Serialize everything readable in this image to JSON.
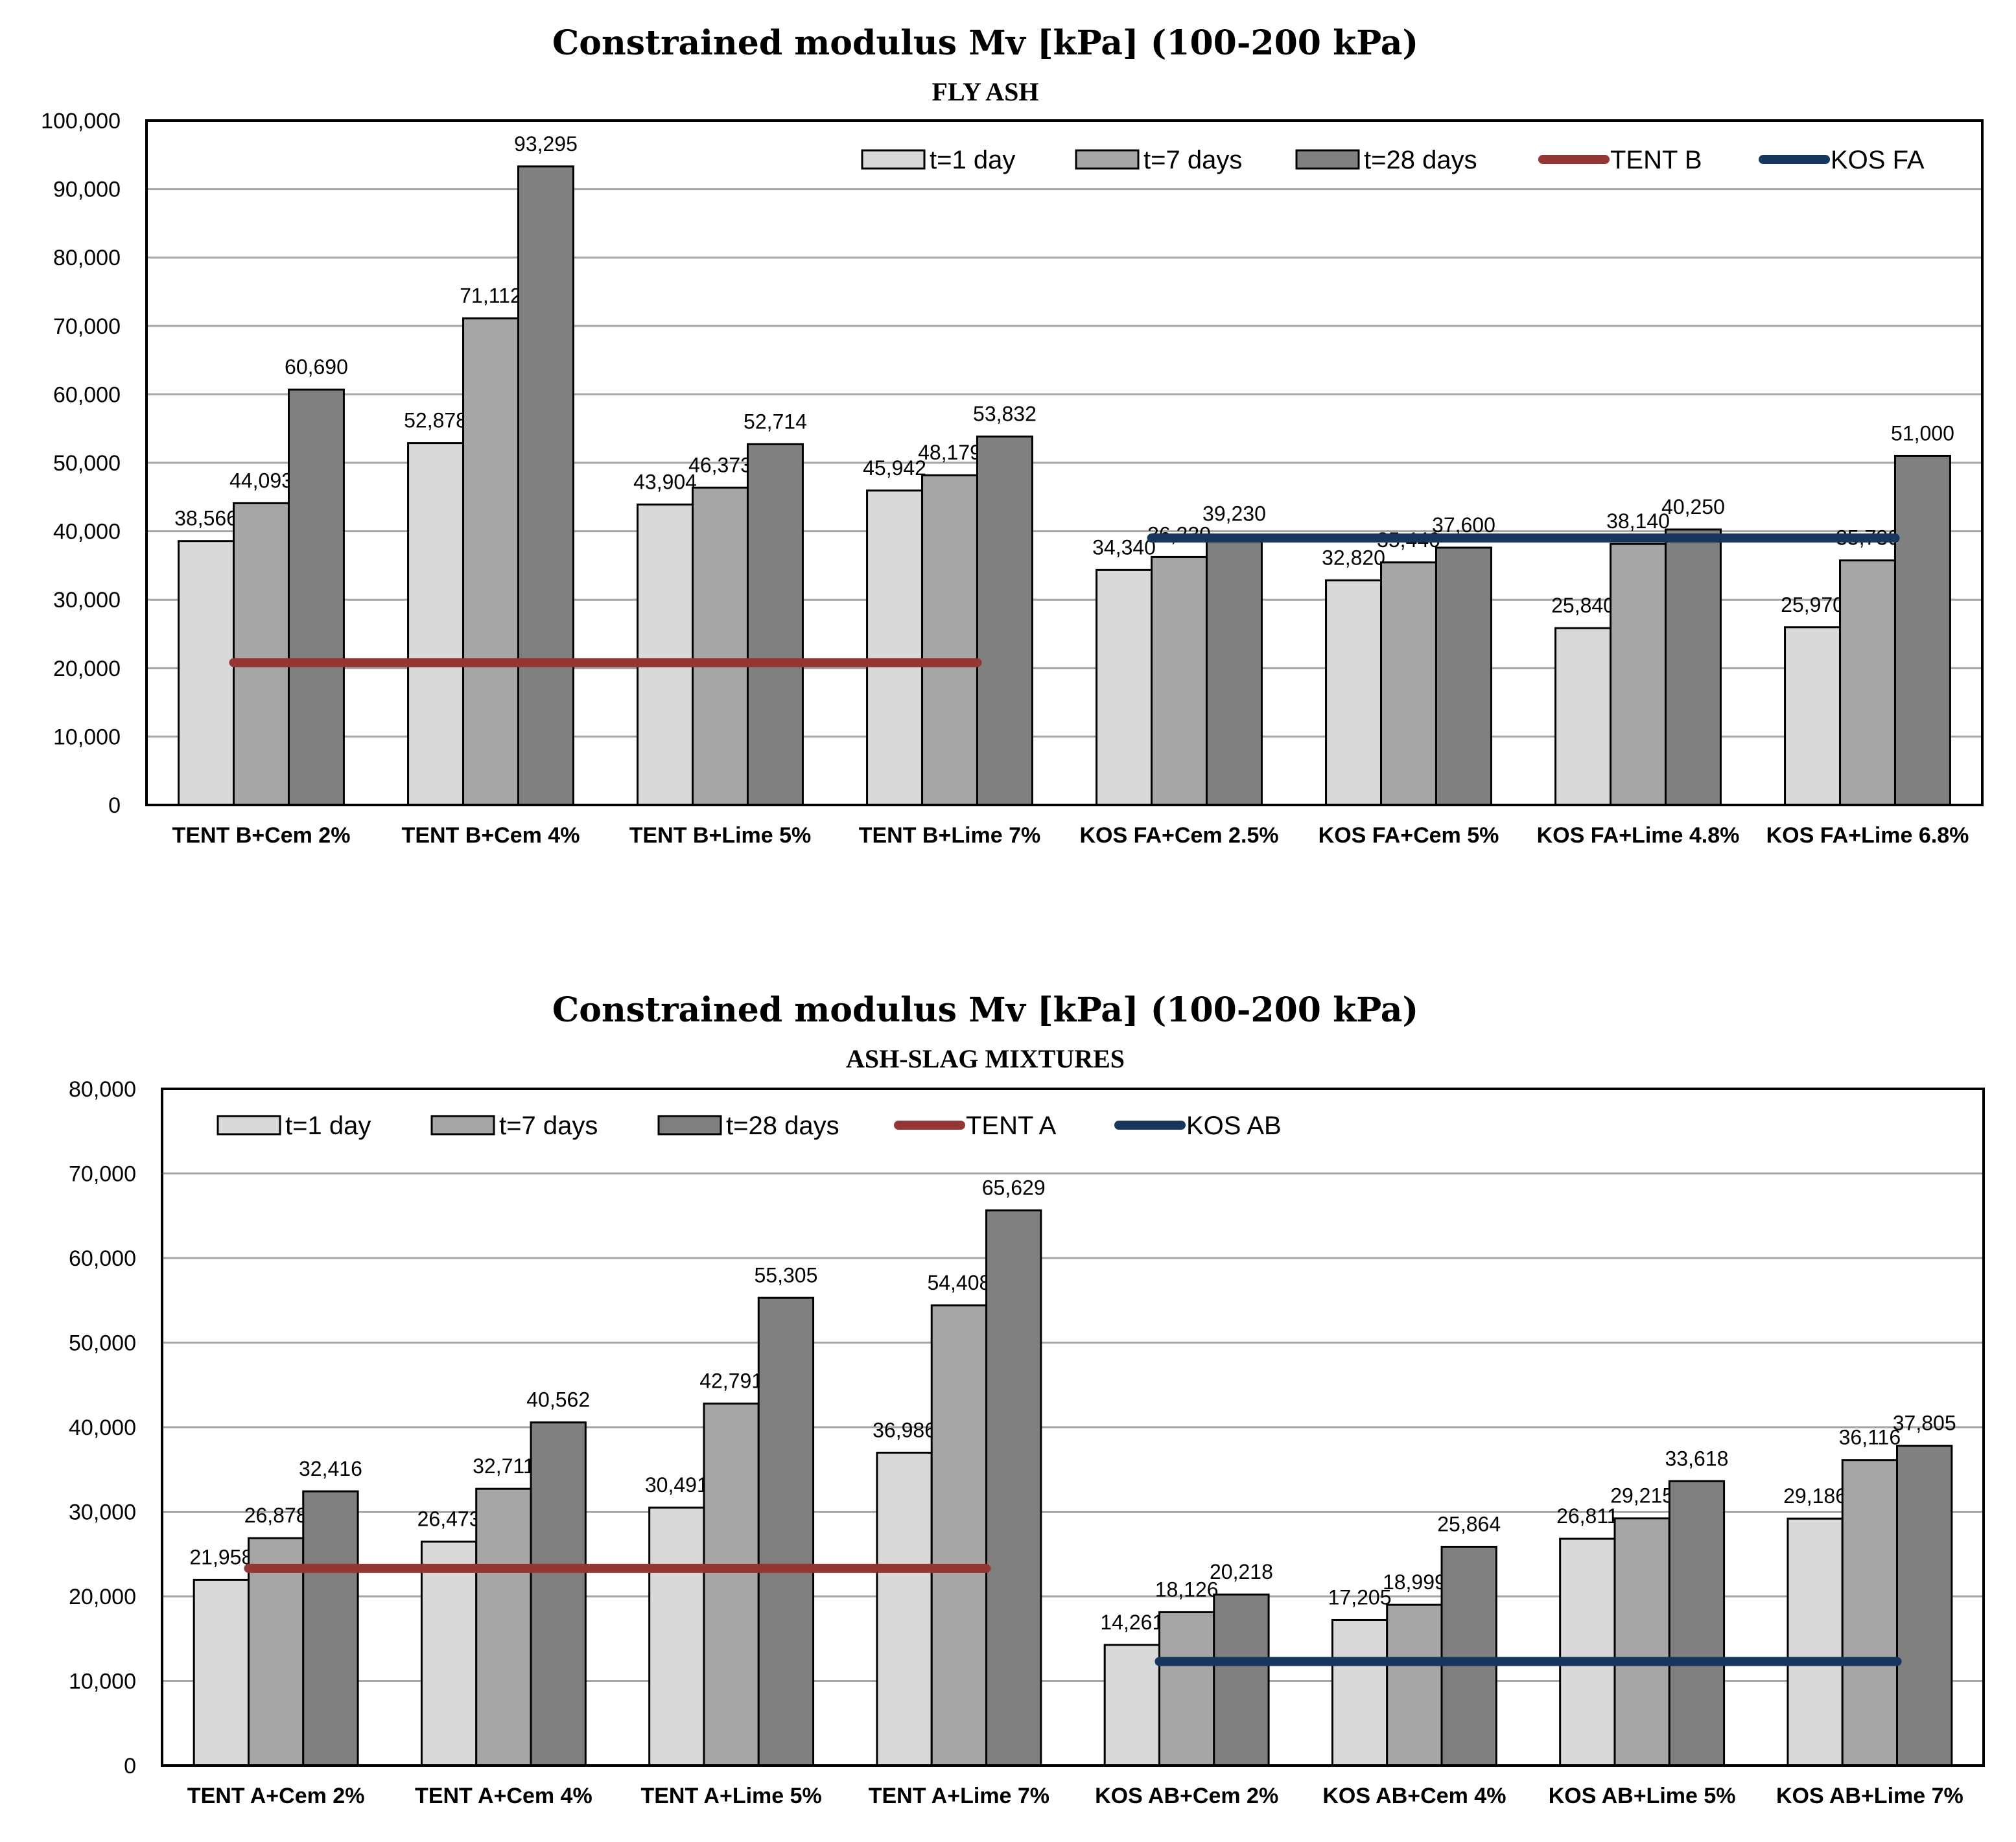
{
  "chart_data": [
    {
      "type": "bar",
      "title": "Constrained modulus Mv [kPa] (100-200 kPa)",
      "subtitle": "FLY ASH",
      "categories": [
        "TENT B+Cem 2%",
        "TENT B+Cem 4%",
        "TENT B+Lime 5%",
        "TENT B+Lime 7%",
        "KOS FA+Cem 2.5%",
        "KOS FA+Cem 5%",
        "KOS FA+Lime 4.8%",
        "KOS FA+Lime 6.8%"
      ],
      "series": [
        {
          "name": "t=1 day",
          "color": "#d9d9d9",
          "values": [
            38566,
            52878,
            43904,
            45942,
            34340,
            32820,
            25840,
            25970
          ],
          "labels": [
            "38,566",
            "52,878",
            "43,904",
            "45,942",
            "34,340",
            "32,820",
            "25,840",
            "25,970"
          ]
        },
        {
          "name": "t=7 days",
          "color": "#a6a6a6",
          "values": [
            44093,
            71112,
            46373,
            48179,
            36230,
            35440,
            38140,
            35730
          ],
          "labels": [
            "44,093",
            "71,112",
            "46,373",
            "48,179",
            "36,230",
            "35,440",
            "38,140",
            "35,730"
          ]
        },
        {
          "name": "t=28 days",
          "color": "#808080",
          "values": [
            60690,
            93295,
            52714,
            53832,
            39230,
            37600,
            40250,
            51000
          ],
          "labels": [
            "60,690",
            "93,295",
            "52,714",
            "53,832",
            "39,230",
            "37,600",
            "40,250",
            "51,000"
          ]
        }
      ],
      "reference_lines": [
        {
          "name": "TENT B",
          "color": "#943634",
          "value": 20800,
          "from_category": 0,
          "to_category": 3
        },
        {
          "name": "KOS FA",
          "color": "#17375e",
          "value": 39000,
          "from_category": 4,
          "to_category": 7
        }
      ],
      "ylim": [
        0,
        100000
      ],
      "yticks": [
        "0",
        "10,000",
        "20,000",
        "30,000",
        "40,000",
        "50,000",
        "60,000",
        "70,000",
        "80,000",
        "90,000",
        "100,000"
      ],
      "legend_position": "top-right",
      "grid": true
    },
    {
      "type": "bar",
      "title": "Constrained modulus Mv [kPa] (100-200 kPa)",
      "subtitle": "ASH-SLAG  MIXTURES",
      "categories": [
        "TENT A+Cem 2%",
        "TENT A+Cem 4%",
        "TENT A+Lime 5%",
        "TENT A+Lime 7%",
        "KOS AB+Cem 2%",
        "KOS AB+Cem 4%",
        "KOS AB+Lime 5%",
        "KOS AB+Lime 7%"
      ],
      "series": [
        {
          "name": "t=1 day",
          "color": "#d9d9d9",
          "values": [
            21958,
            26473,
            30491,
            36986,
            14261,
            17205,
            26811,
            29186
          ],
          "labels": [
            "21,958",
            "26,473",
            "30,491",
            "36,986",
            "14,261",
            "17,205",
            "26,811",
            "29,186"
          ]
        },
        {
          "name": "t=7 days",
          "color": "#a6a6a6",
          "values": [
            26878,
            32711,
            42791,
            54408,
            18126,
            18999,
            29215,
            36116
          ],
          "labels": [
            "26,878",
            "32,711",
            "42,791",
            "54,408",
            "18,126",
            "18,999",
            "29,215",
            "36,116"
          ]
        },
        {
          "name": "t=28 days",
          "color": "#808080",
          "values": [
            32416,
            40562,
            55305,
            65629,
            20218,
            25864,
            33618,
            37805
          ],
          "labels": [
            "32,416",
            "40,562",
            "55,305",
            "65,629",
            "20,218",
            "25,864",
            "33,618",
            "37,805"
          ]
        }
      ],
      "reference_lines": [
        {
          "name": "TENT A",
          "color": "#943634",
          "value": 23300,
          "from_category": 0,
          "to_category": 3
        },
        {
          "name": "KOS AB",
          "color": "#17375e",
          "value": 12300,
          "from_category": 4,
          "to_category": 7
        }
      ],
      "ylim": [
        0,
        80000
      ],
      "yticks": [
        "0",
        "10,000",
        "20,000",
        "30,000",
        "40,000",
        "50,000",
        "60,000",
        "70,000",
        "80,000"
      ],
      "legend_position": "top-left",
      "grid": true
    }
  ]
}
